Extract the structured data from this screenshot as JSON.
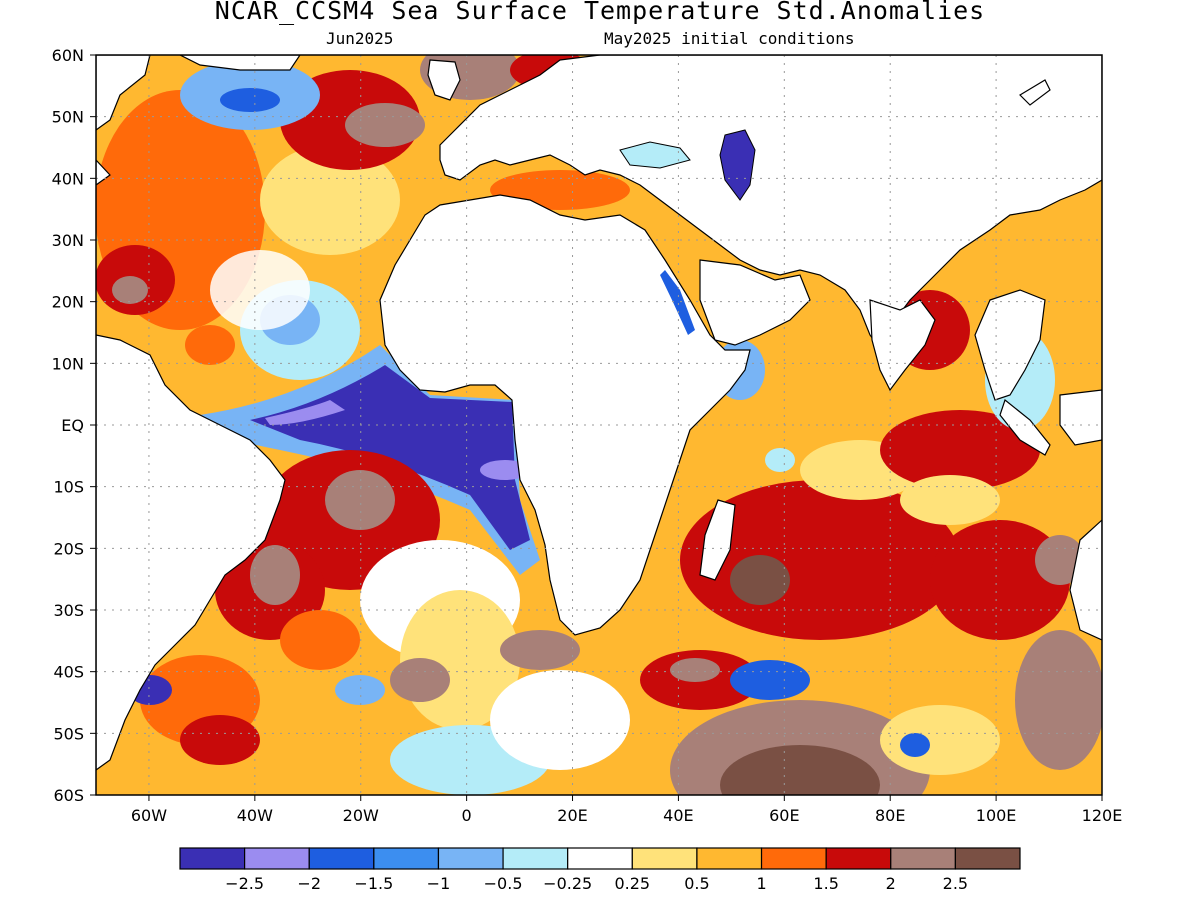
{
  "title": "NCAR_CCSM4 Sea Surface Temperature Std.Anomalies",
  "subtitle_left": "Jun2025",
  "subtitle_right": "May2025 initial conditions",
  "lat_labels": [
    "60N",
    "50N",
    "40N",
    "30N",
    "20N",
    "10N",
    "EQ",
    "10S",
    "20S",
    "30S",
    "40S",
    "50S",
    "60S"
  ],
  "lon_labels": [
    "60W",
    "40W",
    "20W",
    "0",
    "20E",
    "40E",
    "60E",
    "80E",
    "100E",
    "120E"
  ],
  "colorbar": {
    "colors": [
      "#3a2fb4",
      "#9b8cf0",
      "#1e5ee0",
      "#3c8ef0",
      "#78b4f5",
      "#b4ecf8",
      "#ffffff",
      "#ffe27a",
      "#ffb830",
      "#ff6a0a",
      "#c80a0a",
      "#a88078",
      "#7a5044"
    ],
    "tick_labels": [
      "-2.5",
      "-2",
      "-1.5",
      "-1",
      "-0.5",
      "-0.25",
      "0.25",
      "0.5",
      "1",
      "1.5",
      "2",
      "2.5"
    ]
  },
  "colors": {
    "land": "#ffffff",
    "coast": "#000000",
    "grid": "#999999"
  }
}
